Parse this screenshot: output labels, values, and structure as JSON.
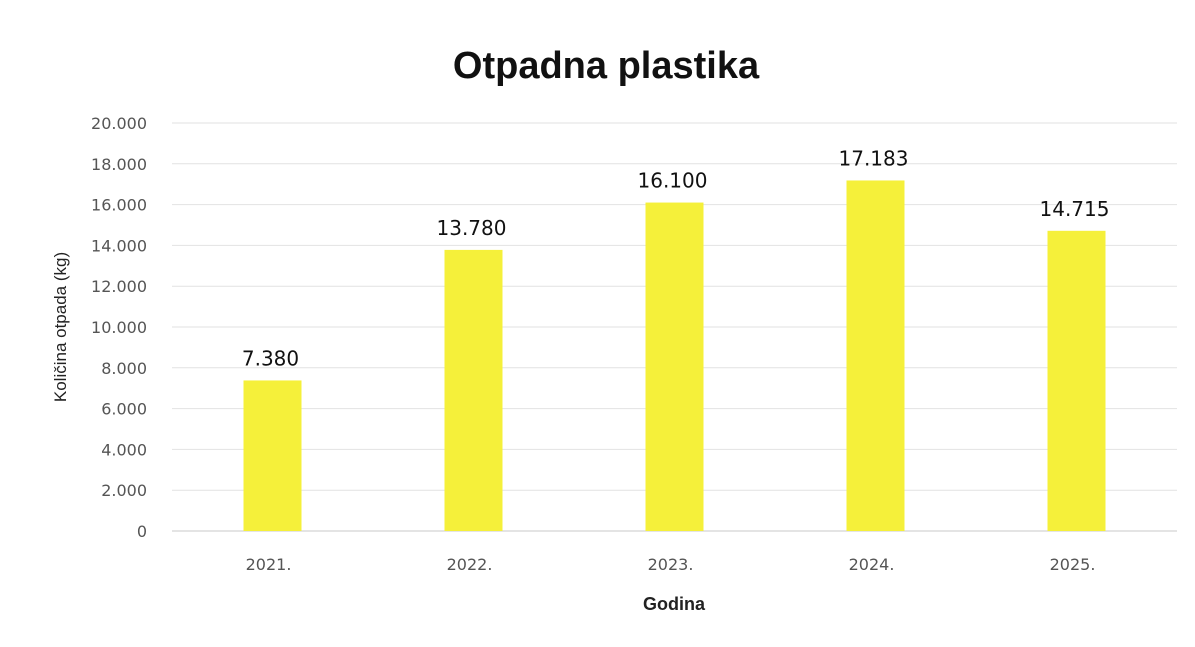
{
  "chart_data": {
    "type": "bar",
    "title": "Otpadna plastika",
    "xlabel": "Godina",
    "ylabel": "Količina otpada (kg)",
    "categories": [
      "2021.",
      "2022.",
      "2023.",
      "2024.",
      "2025."
    ],
    "values": [
      7380,
      13780,
      16100,
      17183,
      14715
    ],
    "data_labels": [
      "7.380",
      "13.780",
      "16.100",
      "17.183",
      "14.715"
    ],
    "ylim": [
      0,
      20000
    ],
    "yticks": [
      0,
      2000,
      4000,
      6000,
      8000,
      10000,
      12000,
      14000,
      16000,
      18000,
      20000
    ],
    "ytick_labels": [
      "0",
      "2.000",
      "4.000",
      "6.000",
      "8.000",
      "10.000",
      "12.000",
      "14.000",
      "16.000",
      "18.000",
      "20.000"
    ],
    "grid": true,
    "legend": "none",
    "bar_color": "#f5f03a"
  }
}
